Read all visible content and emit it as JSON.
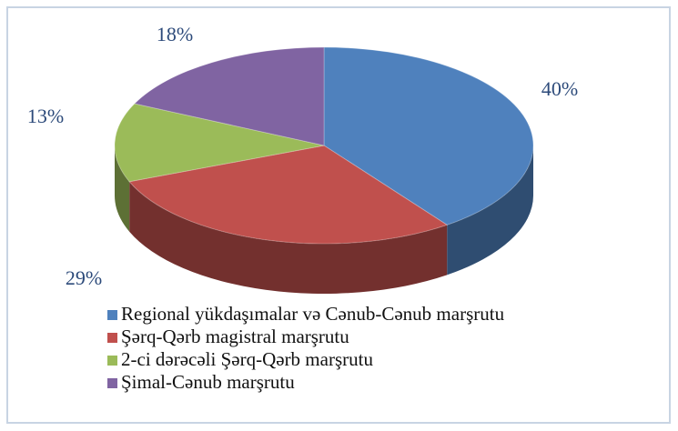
{
  "chart_data": {
    "type": "pie",
    "categories": [
      "Regional yükdaşımalar və Cənub-Cənub marşrutu",
      "Şərq-Qərb magistral marşrutu",
      "2-ci dərəcəli Şərq-Qərb marşrutu",
      "Şimal-Cənub marşrutu"
    ],
    "values": [
      40,
      29,
      13,
      18
    ],
    "value_labels": [
      "40%",
      "29%",
      "13%",
      "18%"
    ],
    "colors": [
      "#4f81bd",
      "#c0504d",
      "#9bbb59",
      "#8064a2"
    ],
    "legend": "bottom"
  }
}
